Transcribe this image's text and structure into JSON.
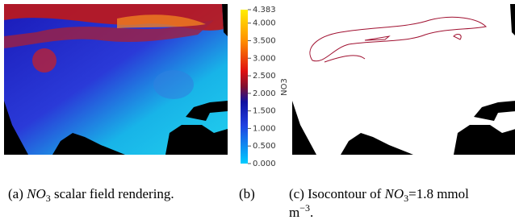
{
  "colorbar": {
    "title": "NO3",
    "ticks": [
      "4.383",
      "4.000",
      "3.500",
      "3.000",
      "2.500",
      "2.000",
      "1.500",
      "1.000",
      "0.500",
      "0.000"
    ]
  },
  "caption_a": {
    "label": "(a)",
    "variable": "NO",
    "subscript": "3",
    "text": "scalar field rendering."
  },
  "caption_b": {
    "label": "(b)"
  },
  "caption_c": {
    "label": "(c)",
    "text": "Isocontour of",
    "variable": "NO",
    "subscript": "3",
    "value": "=1.8 mmol",
    "unit": "m",
    "exponent": "−3",
    "end": "."
  }
}
